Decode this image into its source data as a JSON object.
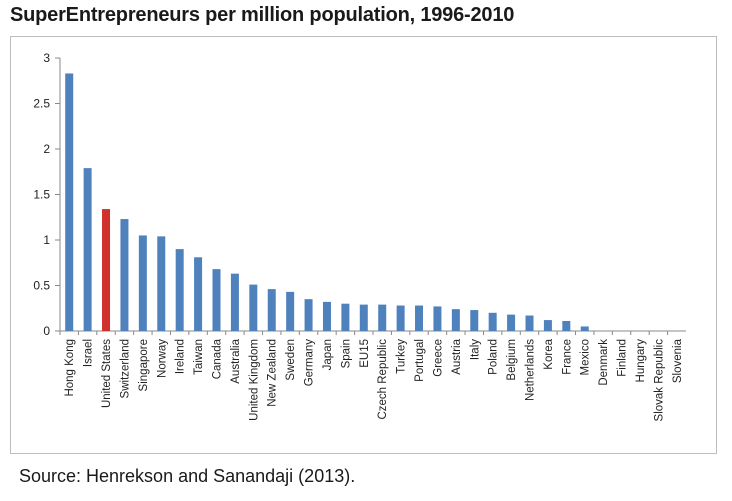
{
  "chart_data": {
    "type": "bar",
    "title": "SuperEntrepreneurs per million population, 1996-2010",
    "source": "Source: Henrekson and Sanandaji (2013).",
    "xlabel": "",
    "ylabel": "",
    "ylim": [
      0,
      3
    ],
    "yticks": [
      "0",
      "0.5",
      "1",
      "1.5",
      "2",
      "2.5",
      "3"
    ],
    "yticks_values": [
      0,
      0.5,
      1,
      1.5,
      2,
      2.5,
      3
    ],
    "grid": false,
    "legend": "none",
    "bar_color": "#4f81bd",
    "highlight_color": "#d0312d",
    "highlight_category": "United States",
    "categories": [
      "Hong Kong",
      "Israel",
      "United States",
      "Switzerland",
      "Singapore",
      "Norway",
      "Ireland",
      "Taiwan",
      "Canada",
      "Australia",
      "United Kingdom",
      "New Zealand",
      "Sweden",
      "Germany",
      "Japan",
      "Spain",
      "EU15",
      "Czech Republic",
      "Turkey",
      "Portugal",
      "Greece",
      "Austria",
      "Italy",
      "Poland",
      "Belgium",
      "Netherlands",
      "Korea",
      "France",
      "Mexico",
      "Denmark",
      "Finland",
      "Hungary",
      "Slovak Republic",
      "Slovenia"
    ],
    "values": [
      2.83,
      1.79,
      1.34,
      1.23,
      1.05,
      1.04,
      0.9,
      0.81,
      0.68,
      0.63,
      0.51,
      0.46,
      0.43,
      0.35,
      0.32,
      0.3,
      0.29,
      0.29,
      0.28,
      0.28,
      0.27,
      0.24,
      0.23,
      0.2,
      0.18,
      0.17,
      0.12,
      0.11,
      0.05,
      0,
      0,
      0,
      0,
      0
    ]
  }
}
